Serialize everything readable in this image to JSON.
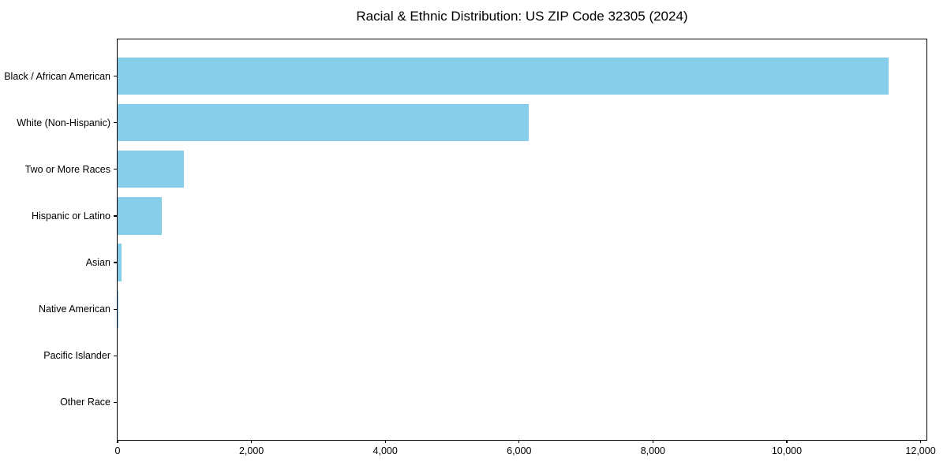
{
  "chart_data": {
    "type": "bar",
    "orientation": "horizontal",
    "title": "Racial & Ethnic Distribution: US ZIP Code 32305 (2024)",
    "xlabel": "",
    "ylabel": "",
    "categories": [
      "Black / African American",
      "White (Non-Hispanic)",
      "Two or More Races",
      "Hispanic or Latino",
      "Asian",
      "Native American",
      "Pacific Islander",
      "Other Race"
    ],
    "values": [
      11520,
      6140,
      985,
      655,
      55,
      12,
      0,
      0
    ],
    "xlim": [
      0,
      12088
    ],
    "x_ticks": [
      0,
      2000,
      4000,
      6000,
      8000,
      10000,
      12000
    ],
    "x_tick_labels": [
      "0",
      "2,000",
      "4,000",
      "6,000",
      "8,000",
      "10,000",
      "12,000"
    ],
    "bar_color": "#87CEEB",
    "spine_color": "#000000",
    "text_color": "#000000",
    "grid": false,
    "legend_position": "none"
  }
}
